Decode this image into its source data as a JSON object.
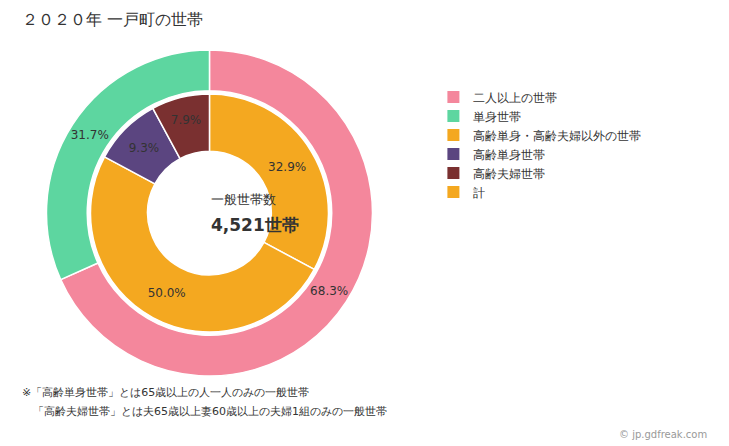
{
  "chart_data": {
    "type": "pie",
    "title": "２０２０年 一戸町の世帯",
    "center_text": [
      "一般世帯数",
      "4,521世帯"
    ],
    "rings": [
      {
        "values": [
          68.3,
          31.7
        ],
        "colors": [
          "#f4879c",
          "#5dd6a0"
        ],
        "value_labels": [
          "68.3%",
          "31.7%"
        ]
      },
      {
        "values": [
          32.9,
          50.0,
          9.3,
          7.9
        ],
        "colors": [
          "#f4a820",
          "#f4a820",
          "#5b4580",
          "#7a3030"
        ],
        "value_labels": [
          "32.9%",
          "50.0%",
          "9.3%",
          "7.9%"
        ]
      }
    ],
    "legend": "right",
    "legend_entries": [
      {
        "label": "二人以上の世帯",
        "color": "#f4879c"
      },
      {
        "label": "単身世帯",
        "color": "#5dd6a0"
      },
      {
        "label": "高齢単身・高齢夫婦以外の世帯",
        "color": "#f4a820"
      },
      {
        "label": "高齢単身世帯",
        "color": "#5b4580"
      },
      {
        "label": "高齢夫婦世帯",
        "color": "#7a3030"
      },
      {
        "label": "計",
        "color": "#f4a820"
      }
    ],
    "footnotes": [
      "※「高齢単身世帯」とは65歳以上の人一人のみの一般世帯",
      "　「高齢夫婦世帯」とは夫65歳以上妻60歳以上の夫婦1組のみの一般世帯"
    ],
    "watermark": "© jp.gdfreak.com"
  }
}
